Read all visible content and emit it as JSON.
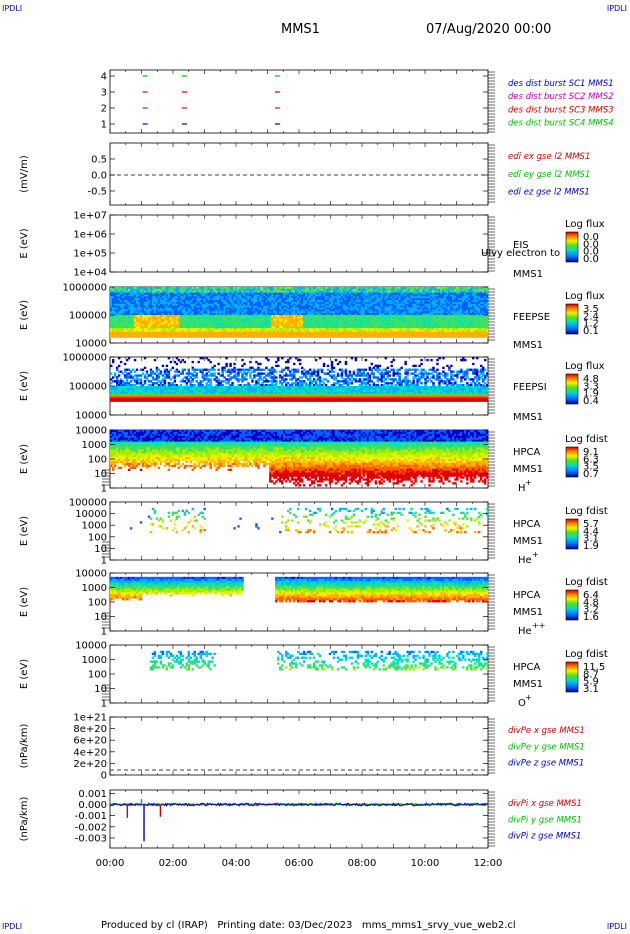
{
  "corner_label": "IPDLI",
  "header": {
    "spacecraft": "MMS1",
    "datetime": "07/Aug/2020 00:00"
  },
  "footer": "Produced by cl (IRAP)   Printing date: 03/Dec/2023   mms_mms1_srvy_vue_web2.cl",
  "colors": {
    "red": "#d40000",
    "green": "#00c000",
    "blue": "#0000c0",
    "magenta": "#c000c0",
    "orange": "#ff8c00"
  },
  "chart_data": [
    {
      "id": "des",
      "type": "scatter",
      "ylabel": "",
      "yticks": [
        "4",
        "3",
        "2",
        "1"
      ],
      "legend": [
        {
          "text": "des dist burst SC1 MMS1",
          "color": "#0000c0"
        },
        {
          "text": "des dist burst SC2 MMS2",
          "color": "#c000c0"
        },
        {
          "text": "des dist burst SC3 MMS3",
          "color": "#d40000"
        },
        {
          "text": "des dist burst SC4 MMS4",
          "color": "#00c000"
        }
      ],
      "series": [
        {
          "sc": 4,
          "color": "#00c000",
          "times": [
            1.1,
            2.35,
            5.3
          ]
        },
        {
          "sc": 3,
          "color": "#d40000",
          "times": [
            1.1,
            2.35,
            5.3
          ]
        },
        {
          "sc": 2,
          "color": "#c000c0",
          "times": [
            1.1,
            2.35,
            5.3
          ]
        },
        {
          "sc": 1,
          "color": "#0000c0",
          "times": [
            1.1,
            2.35,
            5.3
          ]
        }
      ]
    },
    {
      "id": "edi",
      "type": "line",
      "ylabel": "(mV/m)",
      "yticks": [
        "0.5",
        "0.0",
        "-0.5"
      ],
      "ylim": [
        -0.75,
        0.75
      ],
      "legend": [
        {
          "text": "edi ex gse l2 MMS1",
          "color": "#d40000"
        },
        {
          "text": "edi ey gse l2 MMS1",
          "color": "#00c000"
        },
        {
          "text": "edi ez gse l2 MMS1",
          "color": "#0000c0"
        }
      ],
      "zero_line": 0
    },
    {
      "id": "eis",
      "type": "heatmap",
      "ylabel": "E (eV)",
      "yticks": [
        "1e+07",
        "1e+06",
        "1e+05",
        "1e+04"
      ],
      "labels": [
        "EIS",
        "MMS1"
      ],
      "overlay_text": "Ulvy electron to",
      "cbar_title": "Log flux",
      "cbar_values": [
        "0.0",
        "0.0",
        "0.0",
        "0.0"
      ]
    },
    {
      "id": "feeps_e",
      "type": "heatmap",
      "ylabel": "E (eV)",
      "yticks": [
        "1000000",
        "100000",
        "10000"
      ],
      "labels": [
        "FEEPSE",
        "MMS1"
      ],
      "cbar_title": "Log flux",
      "cbar_values": [
        "3.5",
        "2.4",
        "1.2",
        "0.1"
      ]
    },
    {
      "id": "feeps_i",
      "type": "heatmap",
      "ylabel": "E (eV)",
      "yticks": [
        "1000000",
        "100000",
        "10000"
      ],
      "labels": [
        "FEEPSI",
        "MMS1"
      ],
      "cbar_title": "Log flux",
      "cbar_values": [
        "4.8",
        "3.3",
        "1.9",
        "0.4"
      ]
    },
    {
      "id": "hpca_h",
      "type": "heatmap",
      "ylabel": "E (eV)",
      "yticks": [
        "10000",
        "1000",
        "100",
        "10",
        "1"
      ],
      "labels": [
        "HPCA",
        "MMS1"
      ],
      "species": "H",
      "charge": "+",
      "cbar_title": "Log fdist",
      "cbar_values": [
        "9.1",
        "6.3",
        "3.5",
        "0.7"
      ]
    },
    {
      "id": "hpca_he",
      "type": "heatmap",
      "ylabel": "E (eV)",
      "yticks": [
        "100000",
        "10000",
        "1000",
        "100",
        "10",
        "1"
      ],
      "labels": [
        "HPCA",
        "MMS1"
      ],
      "species": "He",
      "charge": "+",
      "cbar_title": "Log fdist",
      "cbar_values": [
        "5.7",
        "4.4",
        "3.1",
        "1.9"
      ]
    },
    {
      "id": "hpca_hepp",
      "type": "heatmap",
      "ylabel": "E (eV)",
      "yticks": [
        "10000",
        "1000",
        "100",
        "10",
        "1"
      ],
      "labels": [
        "HPCA",
        "MMS1"
      ],
      "species": "He",
      "charge": "++",
      "cbar_title": "Log fdist",
      "cbar_values": [
        "6.4",
        "4.8",
        "3.2",
        "1.6"
      ]
    },
    {
      "id": "hpca_o",
      "type": "heatmap",
      "ylabel": "E (eV)",
      "yticks": [
        "10000",
        "1000",
        "100",
        "10",
        "1"
      ],
      "labels": [
        "HPCA",
        "MMS1"
      ],
      "species": "O",
      "charge": "+",
      "cbar_title": "Log fdist",
      "cbar_values": [
        "11.5",
        "8.7",
        "5.9",
        "3.1"
      ]
    },
    {
      "id": "divpe",
      "type": "line",
      "ylabel": "(nPa/km)",
      "yticks": [
        "1e+21",
        "8e+20",
        "6e+20",
        "4e+20",
        "2e+20",
        "0"
      ],
      "ylim": [
        -5e+19,
        1.1e+21
      ],
      "legend": [
        {
          "text": "divPe x gse MMS1",
          "color": "#d40000"
        },
        {
          "text": "divPe y gse MMS1",
          "color": "#00c000"
        },
        {
          "text": "divPe z gse MMS1",
          "color": "#0000c0"
        }
      ],
      "zero_line": 0
    },
    {
      "id": "divpi",
      "type": "line",
      "ylabel": "(nPa/km)",
      "yticks": [
        "0.001",
        "0.000",
        "-0.001",
        "-0.002",
        "-0.003"
      ],
      "ylim": [
        -0.0039,
        0.0013
      ],
      "legend": [
        {
          "text": "divPi x gse MMS1",
          "color": "#d40000"
        },
        {
          "text": "divPi y gse MMS1",
          "color": "#00c000"
        },
        {
          "text": "divPi z gse MMS1",
          "color": "#0000c0"
        }
      ],
      "spikes": [
        {
          "t": 1.08,
          "v": -0.0033,
          "color": "#0000c0"
        },
        {
          "t": 0.55,
          "v": -0.0012,
          "color": "#d40000"
        },
        {
          "t": 1.6,
          "v": -0.0011,
          "color": "#d40000"
        },
        {
          "t": 1.0,
          "v": 0.0005,
          "color": "#00c000"
        }
      ]
    }
  ],
  "xaxis": {
    "ticks": [
      "00:00",
      "02:00",
      "04:00",
      "06:00",
      "08:00",
      "10:00",
      "12:00"
    ],
    "range_hours": [
      0,
      12
    ]
  }
}
